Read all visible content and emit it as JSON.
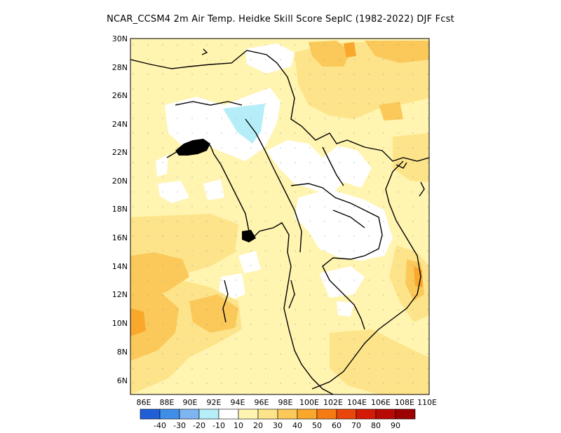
{
  "title": "NCAR_CCSM4  2m Air Temp. Heidke Skill Score SepIC (1982-2022) DJF Fcst",
  "map": {
    "lon_range": [
      85,
      110
    ],
    "lat_range": [
      5,
      30
    ],
    "lat_ticks": [
      "30N",
      "28N",
      "26N",
      "24N",
      "22N",
      "20N",
      "18N",
      "16N",
      "14N",
      "12N",
      "10N",
      "8N",
      "6N"
    ],
    "lon_ticks": [
      "86E",
      "88E",
      "90E",
      "92E",
      "94E",
      "96E",
      "98E",
      "100E",
      "102E",
      "104E",
      "106E",
      "108E",
      "110E"
    ],
    "gridlines": true
  },
  "colorbar": {
    "labels": [
      "-40",
      "-30",
      "-20",
      "-10",
      "10",
      "20",
      "30",
      "40",
      "50",
      "60",
      "70",
      "80",
      "90"
    ],
    "colors": [
      "#1e5fd8",
      "#3f8ee8",
      "#7fb5f0",
      "#b5eef8",
      "#ffffff",
      "#fff4b0",
      "#fde48a",
      "#fbc85a",
      "#f9a82c",
      "#f57a14",
      "#e8460a",
      "#d21a06",
      "#b80a04",
      "#9c0202"
    ]
  }
}
